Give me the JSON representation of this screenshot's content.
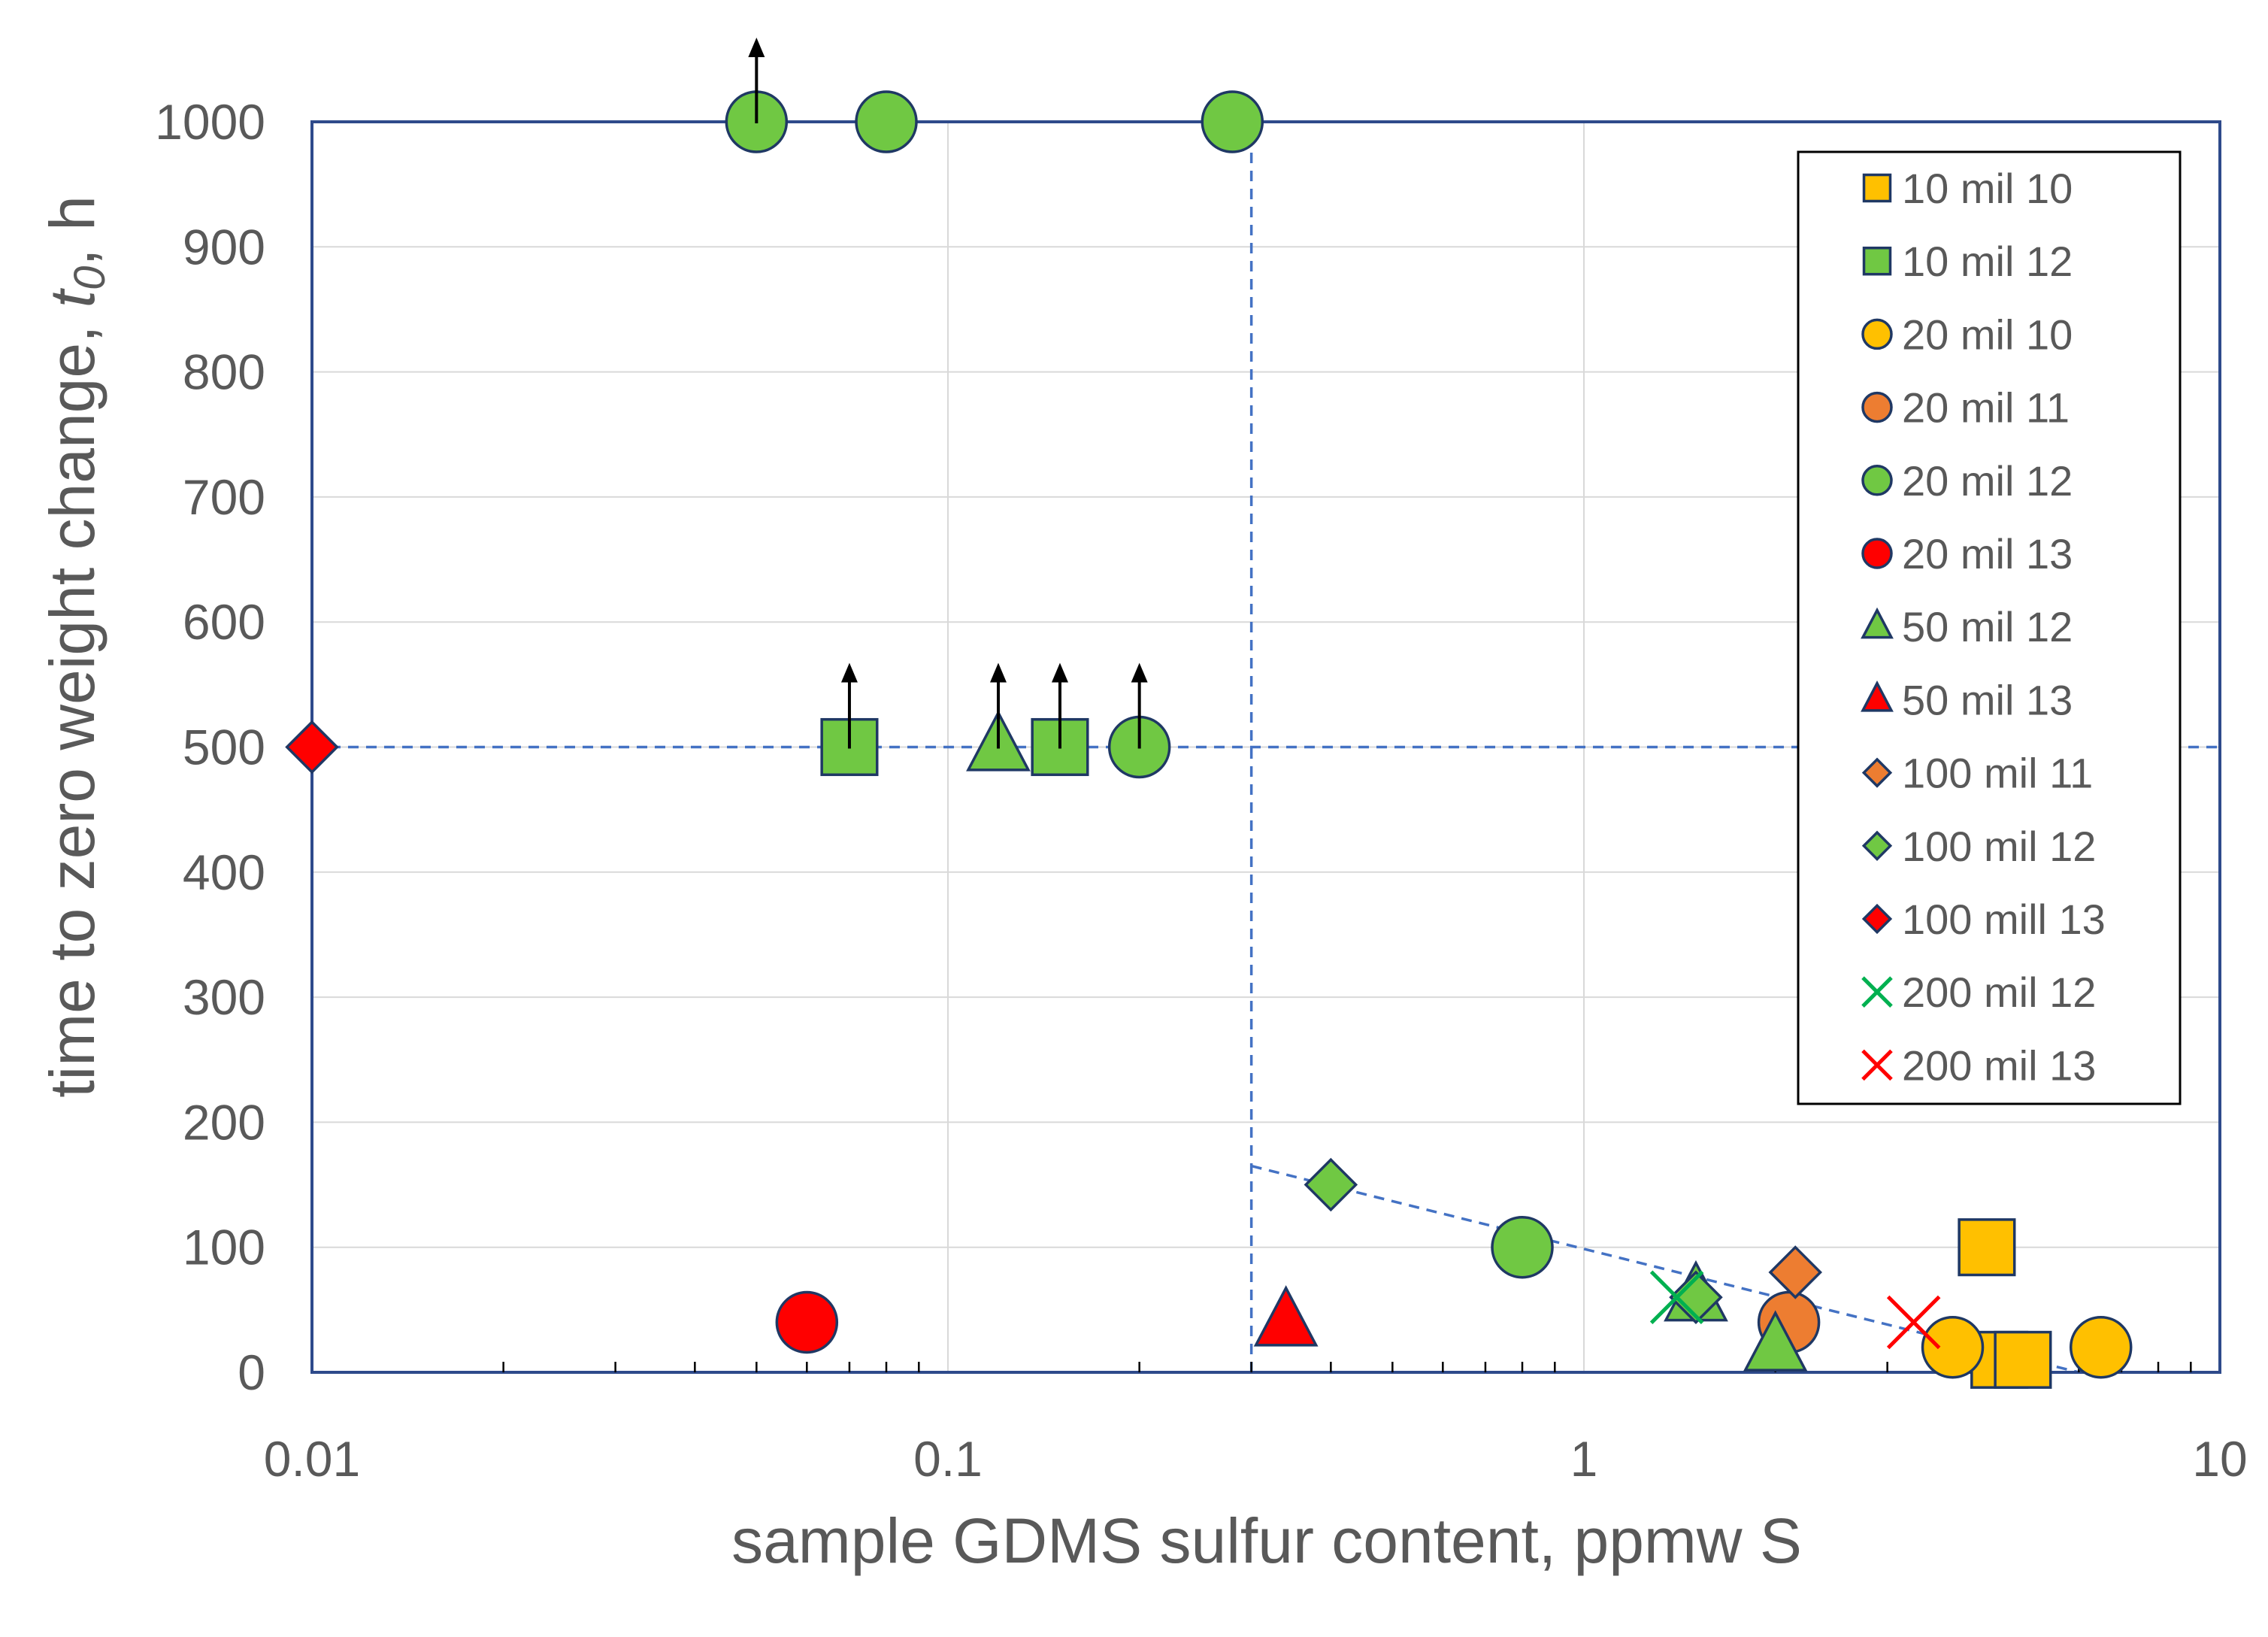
{
  "chart_data": {
    "type": "scatter",
    "xscale": "log",
    "xlabel": "sample GDMS sulfur content, ppmw S",
    "ylabel_prefix": "time to zero weight change, ",
    "ylabel_symbol": "t",
    "ylabel_subscript": "0",
    "ylabel_suffix": ", h",
    "xlim": [
      0.01,
      10
    ],
    "ylim": [
      0,
      1000
    ],
    "x_ticks": [
      0.01,
      0.1,
      1,
      10
    ],
    "x_tick_labels": [
      "0.01",
      "0.1",
      "1",
      "10"
    ],
    "y_ticks": [
      0,
      100,
      200,
      300,
      400,
      500,
      600,
      700,
      800,
      900,
      1000
    ],
    "y_tick_labels": [
      "0",
      "100",
      "200",
      "300",
      "400",
      "500",
      "600",
      "700",
      "800",
      "900",
      "1000"
    ],
    "grid": true,
    "legend_position": "top-right",
    "colors": {
      "yellow": "#FFC000",
      "green": "#70C843",
      "orange": "#ED7D31",
      "red": "#FF0000",
      "marker_edge": "#1F3864",
      "axis_frame": "#2E4A8B",
      "guide_line": "#4472C4",
      "grid": "#D9D9D9",
      "text": "#595959"
    },
    "series": [
      {
        "name": "10 mil 10",
        "marker": "square",
        "color": "#FFC000",
        "points": [
          [
            4.3,
            100
          ],
          [
            4.5,
            10
          ],
          [
            4.9,
            10
          ]
        ]
      },
      {
        "name": "10 mil 12",
        "marker": "square",
        "color": "#70C843",
        "points": [
          [
            0.07,
            500
          ],
          [
            0.15,
            500
          ]
        ]
      },
      {
        "name": "20 mil 10",
        "marker": "circle",
        "color": "#FFC000",
        "points": [
          [
            3.8,
            20
          ],
          [
            6.5,
            20
          ]
        ]
      },
      {
        "name": "20 mil 11",
        "marker": "circle",
        "color": "#ED7D31",
        "points": [
          [
            2.1,
            40
          ]
        ]
      },
      {
        "name": "20 mil 12",
        "marker": "circle",
        "color": "#70C843",
        "points": [
          [
            0.05,
            1000
          ],
          [
            0.08,
            1000
          ],
          [
            0.28,
            1000
          ],
          [
            0.2,
            500
          ],
          [
            0.8,
            100
          ]
        ]
      },
      {
        "name": "20 mil 13",
        "marker": "circle",
        "color": "#FF0000",
        "points": [
          [
            0.06,
            40
          ]
        ]
      },
      {
        "name": "50 mil 12",
        "marker": "triangle",
        "color": "#70C843",
        "points": [
          [
            0.12,
            500
          ],
          [
            1.5,
            60
          ],
          [
            2.0,
            20
          ]
        ]
      },
      {
        "name": "50 mil 13",
        "marker": "triangle",
        "color": "#FF0000",
        "points": [
          [
            0.34,
            40
          ]
        ]
      },
      {
        "name": "100 mil 11",
        "marker": "diamond",
        "color": "#ED7D31",
        "points": [
          [
            2.15,
            80
          ]
        ]
      },
      {
        "name": "100 mil 12",
        "marker": "diamond",
        "color": "#70C843",
        "points": [
          [
            0.4,
            150
          ],
          [
            1.5,
            60
          ]
        ]
      },
      {
        "name": "100 mill 13",
        "marker": "diamond",
        "color": "#FF0000",
        "points": [
          [
            0.01,
            500
          ]
        ]
      },
      {
        "name": "200 mil 12",
        "marker": "x",
        "color": "#00B050",
        "points": [
          [
            1.4,
            60
          ]
        ]
      },
      {
        "name": "200 mil 13",
        "marker": "x",
        "color": "#FF0000",
        "points": [
          [
            3.3,
            40
          ]
        ]
      }
    ],
    "lower_bound_arrows": [
      [
        0.05,
        1000
      ],
      [
        0.07,
        500
      ],
      [
        0.12,
        500
      ],
      [
        0.15,
        500
      ],
      [
        0.2,
        500
      ]
    ],
    "guide_lines": [
      {
        "kind": "horizontal",
        "y": 500,
        "x_from": 0.01,
        "x_to": 10
      },
      {
        "kind": "vertical",
        "x": 0.3,
        "y_from": 0,
        "y_to": 1000
      },
      {
        "kind": "segment",
        "from": [
          0.3,
          165
        ],
        "to": [
          6.0,
          0
        ]
      }
    ]
  }
}
